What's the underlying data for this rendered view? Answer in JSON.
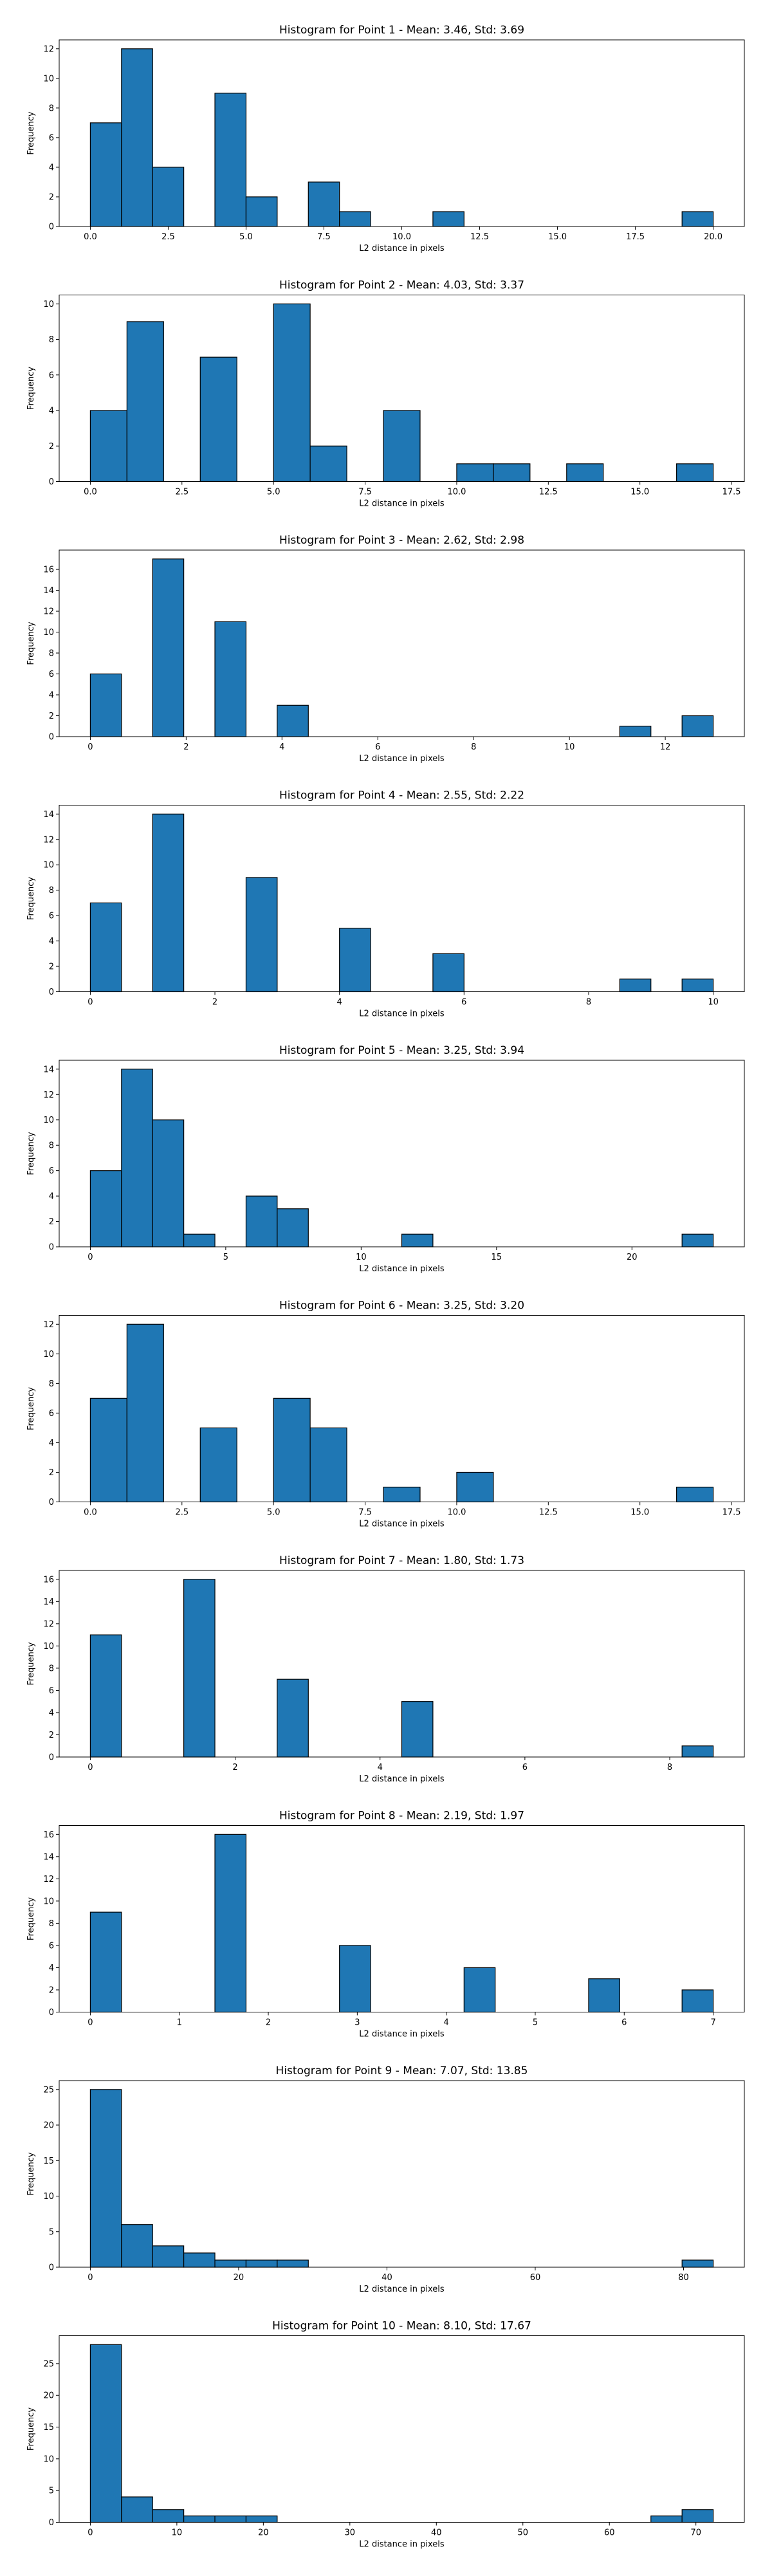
{
  "common": {
    "xlabel": "L2 distance in pixels",
    "ylabel": "Frequency",
    "bar_color": "#1f77b4",
    "edge_color": "#000000"
  },
  "chart_data": [
    {
      "type": "bar",
      "title": "Histogram for Point 1 - Mean: 3.46, Std: 3.69",
      "xlabel": "L2 distance in pixels",
      "ylabel": "Frequency",
      "xlim": [
        -1,
        21
      ],
      "ylim": [
        0,
        12.6
      ],
      "xticks": [
        0,
        2.5,
        5,
        7.5,
        10,
        12.5,
        15,
        17.5,
        20
      ],
      "xtick_labels": [
        "0.0",
        "2.5",
        "5.0",
        "7.5",
        "10.0",
        "12.5",
        "15.0",
        "17.5",
        "20.0"
      ],
      "yticks": [
        0,
        2,
        4,
        6,
        8,
        10,
        12
      ],
      "bars": [
        {
          "x0": 0,
          "x1": 1,
          "value": 7
        },
        {
          "x0": 1,
          "x1": 2,
          "value": 12
        },
        {
          "x0": 2,
          "x1": 3,
          "value": 4
        },
        {
          "x0": 4,
          "x1": 5,
          "value": 9
        },
        {
          "x0": 5,
          "x1": 6,
          "value": 2
        },
        {
          "x0": 7,
          "x1": 8,
          "value": 3
        },
        {
          "x0": 8,
          "x1": 9,
          "value": 1
        },
        {
          "x0": 11,
          "x1": 12,
          "value": 1
        },
        {
          "x0": 19,
          "x1": 20,
          "value": 1
        }
      ]
    },
    {
      "type": "bar",
      "title": "Histogram for Point 2 - Mean: 4.03, Std: 3.37",
      "xlabel": "L2 distance in pixels",
      "ylabel": "Frequency",
      "xlim": [
        -0.85,
        17.85
      ],
      "ylim": [
        0,
        10.5
      ],
      "xticks": [
        0,
        2.5,
        5,
        7.5,
        10,
        12.5,
        15,
        17.5
      ],
      "xtick_labels": [
        "0.0",
        "2.5",
        "5.0",
        "7.5",
        "10.0",
        "12.5",
        "15.0",
        "17.5"
      ],
      "yticks": [
        0,
        2,
        4,
        6,
        8,
        10
      ],
      "bars": [
        {
          "x0": 0,
          "x1": 1,
          "value": 4
        },
        {
          "x0": 1,
          "x1": 2,
          "value": 9
        },
        {
          "x0": 3,
          "x1": 4,
          "value": 7
        },
        {
          "x0": 5,
          "x1": 6,
          "value": 10
        },
        {
          "x0": 6,
          "x1": 7,
          "value": 2
        },
        {
          "x0": 8,
          "x1": 9,
          "value": 4
        },
        {
          "x0": 10,
          "x1": 11,
          "value": 1
        },
        {
          "x0": 11,
          "x1": 12,
          "value": 1
        },
        {
          "x0": 13,
          "x1": 14,
          "value": 1
        },
        {
          "x0": 16,
          "x1": 17,
          "value": 1
        }
      ]
    },
    {
      "type": "bar",
      "title": "Histogram for Point 3 - Mean: 2.62, Std: 2.98",
      "xlabel": "L2 distance in pixels",
      "ylabel": "Frequency",
      "xlim": [
        -0.65,
        13.65
      ],
      "ylim": [
        0,
        17.85
      ],
      "xticks": [
        0,
        2,
        4,
        6,
        8,
        10,
        12
      ],
      "xtick_labels": [
        "0",
        "2",
        "4",
        "6",
        "8",
        "10",
        "12"
      ],
      "yticks": [
        0,
        2,
        4,
        6,
        8,
        10,
        12,
        14,
        16
      ],
      "bars": [
        {
          "x0": 0,
          "x1": 0.65,
          "value": 6
        },
        {
          "x0": 1.3,
          "x1": 1.95,
          "value": 17
        },
        {
          "x0": 2.6,
          "x1": 3.25,
          "value": 11
        },
        {
          "x0": 3.9,
          "x1": 4.55,
          "value": 3
        },
        {
          "x0": 11.05,
          "x1": 11.7,
          "value": 1
        },
        {
          "x0": 12.35,
          "x1": 13,
          "value": 2
        }
      ]
    },
    {
      "type": "bar",
      "title": "Histogram for Point 4 - Mean: 2.55, Std: 2.22",
      "xlabel": "L2 distance in pixels",
      "ylabel": "Frequency",
      "xlim": [
        -0.5,
        10.5
      ],
      "ylim": [
        0,
        14.7
      ],
      "xticks": [
        0,
        2,
        4,
        6,
        8,
        10
      ],
      "xtick_labels": [
        "0",
        "2",
        "4",
        "6",
        "8",
        "10"
      ],
      "yticks": [
        0,
        2,
        4,
        6,
        8,
        10,
        12,
        14
      ],
      "bars": [
        {
          "x0": 0,
          "x1": 0.5,
          "value": 7
        },
        {
          "x0": 1,
          "x1": 1.5,
          "value": 14
        },
        {
          "x0": 2.5,
          "x1": 3,
          "value": 9
        },
        {
          "x0": 4,
          "x1": 4.5,
          "value": 5
        },
        {
          "x0": 5.5,
          "x1": 6,
          "value": 3
        },
        {
          "x0": 8.5,
          "x1": 9,
          "value": 1
        },
        {
          "x0": 9.5,
          "x1": 10,
          "value": 1
        }
      ]
    },
    {
      "type": "bar",
      "title": "Histogram for Point 5 - Mean: 3.25, Std: 3.94",
      "xlabel": "L2 distance in pixels",
      "ylabel": "Frequency",
      "xlim": [
        -1.15,
        24.15
      ],
      "ylim": [
        0,
        14.7
      ],
      "xticks": [
        0,
        5,
        10,
        15,
        20
      ],
      "xtick_labels": [
        "0",
        "5",
        "10",
        "15",
        "20"
      ],
      "yticks": [
        0,
        2,
        4,
        6,
        8,
        10,
        12,
        14
      ],
      "bars": [
        {
          "x0": 0,
          "x1": 1.15,
          "value": 6
        },
        {
          "x0": 1.15,
          "x1": 2.3,
          "value": 14
        },
        {
          "x0": 2.3,
          "x1": 3.45,
          "value": 10
        },
        {
          "x0": 3.45,
          "x1": 4.6,
          "value": 1
        },
        {
          "x0": 5.75,
          "x1": 6.9,
          "value": 4
        },
        {
          "x0": 6.9,
          "x1": 8.05,
          "value": 3
        },
        {
          "x0": 11.5,
          "x1": 12.65,
          "value": 1
        },
        {
          "x0": 21.85,
          "x1": 23,
          "value": 1
        }
      ]
    },
    {
      "type": "bar",
      "title": "Histogram for Point 6 - Mean: 3.25, Std: 3.20",
      "xlabel": "L2 distance in pixels",
      "ylabel": "Frequency",
      "xlim": [
        -0.85,
        17.85
      ],
      "ylim": [
        0,
        12.6
      ],
      "xticks": [
        0,
        2.5,
        5,
        7.5,
        10,
        12.5,
        15,
        17.5
      ],
      "xtick_labels": [
        "0.0",
        "2.5",
        "5.0",
        "7.5",
        "10.0",
        "12.5",
        "15.0",
        "17.5"
      ],
      "yticks": [
        0,
        2,
        4,
        6,
        8,
        10,
        12
      ],
      "bars": [
        {
          "x0": 0,
          "x1": 1,
          "value": 7
        },
        {
          "x0": 1,
          "x1": 2,
          "value": 12
        },
        {
          "x0": 3,
          "x1": 4,
          "value": 5
        },
        {
          "x0": 5,
          "x1": 6,
          "value": 7
        },
        {
          "x0": 6,
          "x1": 7,
          "value": 5
        },
        {
          "x0": 8,
          "x1": 9,
          "value": 1
        },
        {
          "x0": 10,
          "x1": 11,
          "value": 2
        },
        {
          "x0": 16,
          "x1": 17,
          "value": 1
        }
      ]
    },
    {
      "type": "bar",
      "title": "Histogram for Point 7 - Mean: 1.80, Std: 1.73",
      "xlabel": "L2 distance in pixels",
      "ylabel": "Frequency",
      "xlim": [
        -0.43,
        9.03
      ],
      "ylim": [
        0,
        16.8
      ],
      "xticks": [
        0,
        2,
        4,
        6,
        8
      ],
      "xtick_labels": [
        "0",
        "2",
        "4",
        "6",
        "8"
      ],
      "yticks": [
        0,
        2,
        4,
        6,
        8,
        10,
        12,
        14,
        16
      ],
      "bars": [
        {
          "x0": 0,
          "x1": 0.43,
          "value": 11
        },
        {
          "x0": 1.29,
          "x1": 1.72,
          "value": 16
        },
        {
          "x0": 2.58,
          "x1": 3.01,
          "value": 7
        },
        {
          "x0": 4.3,
          "x1": 4.73,
          "value": 5
        },
        {
          "x0": 8.17,
          "x1": 8.6,
          "value": 1
        }
      ]
    },
    {
      "type": "bar",
      "title": "Histogram for Point 8 - Mean: 2.19, Std: 1.97",
      "xlabel": "L2 distance in pixels",
      "ylabel": "Frequency",
      "xlim": [
        -0.35,
        7.35
      ],
      "ylim": [
        0,
        16.8
      ],
      "xticks": [
        0,
        1,
        2,
        3,
        4,
        5,
        6,
        7
      ],
      "xtick_labels": [
        "0",
        "1",
        "2",
        "3",
        "4",
        "5",
        "6",
        "7"
      ],
      "yticks": [
        0,
        2,
        4,
        6,
        8,
        10,
        12,
        14,
        16
      ],
      "bars": [
        {
          "x0": 0,
          "x1": 0.35,
          "value": 9
        },
        {
          "x0": 1.4,
          "x1": 1.75,
          "value": 16
        },
        {
          "x0": 2.8,
          "x1": 3.15,
          "value": 6
        },
        {
          "x0": 4.2,
          "x1": 4.55,
          "value": 4
        },
        {
          "x0": 5.6,
          "x1": 5.95,
          "value": 3
        },
        {
          "x0": 6.65,
          "x1": 7,
          "value": 2
        }
      ]
    },
    {
      "type": "bar",
      "title": "Histogram for Point 9 - Mean: 7.07, Std: 13.85",
      "xlabel": "L2 distance in pixels",
      "ylabel": "Frequency",
      "xlim": [
        -4.2,
        88.2
      ],
      "ylim": [
        0,
        26.25
      ],
      "xticks": [
        0,
        20,
        40,
        60,
        80
      ],
      "xtick_labels": [
        "0",
        "20",
        "40",
        "60",
        "80"
      ],
      "yticks": [
        0,
        5,
        10,
        15,
        20,
        25
      ],
      "bars": [
        {
          "x0": 0,
          "x1": 4.2,
          "value": 25
        },
        {
          "x0": 4.2,
          "x1": 8.4,
          "value": 6
        },
        {
          "x0": 8.4,
          "x1": 12.6,
          "value": 3
        },
        {
          "x0": 12.6,
          "x1": 16.8,
          "value": 2
        },
        {
          "x0": 16.8,
          "x1": 21,
          "value": 1
        },
        {
          "x0": 21,
          "x1": 25.2,
          "value": 1
        },
        {
          "x0": 25.2,
          "x1": 29.4,
          "value": 1
        },
        {
          "x0": 79.8,
          "x1": 84,
          "value": 1
        }
      ]
    },
    {
      "type": "bar",
      "title": "Histogram for Point 10 - Mean: 8.10, Std: 17.67",
      "xlabel": "L2 distance in pixels",
      "ylabel": "Frequency",
      "xlim": [
        -3.6,
        75.6
      ],
      "ylim": [
        0,
        29.4
      ],
      "xticks": [
        0,
        10,
        20,
        30,
        40,
        50,
        60,
        70
      ],
      "xtick_labels": [
        "0",
        "10",
        "20",
        "30",
        "40",
        "50",
        "60",
        "70"
      ],
      "yticks": [
        0,
        5,
        10,
        15,
        20,
        25
      ],
      "bars": [
        {
          "x0": 0,
          "x1": 3.6,
          "value": 28
        },
        {
          "x0": 3.6,
          "x1": 7.2,
          "value": 4
        },
        {
          "x0": 7.2,
          "x1": 10.8,
          "value": 2
        },
        {
          "x0": 10.8,
          "x1": 14.4,
          "value": 1
        },
        {
          "x0": 14.4,
          "x1": 18,
          "value": 1
        },
        {
          "x0": 18,
          "x1": 21.6,
          "value": 1
        },
        {
          "x0": 64.8,
          "x1": 68.4,
          "value": 1
        },
        {
          "x0": 68.4,
          "x1": 72,
          "value": 2
        }
      ]
    }
  ]
}
